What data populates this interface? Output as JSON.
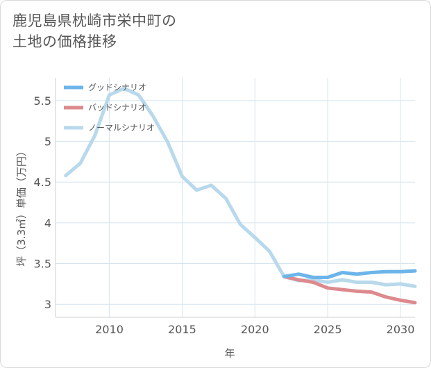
{
  "title": "鹿児島県枕崎市栄中町の\n土地の価格推移",
  "chart_data": {
    "type": "line",
    "xlabel": "年",
    "ylabel": "坪（3.3㎡）単価（万円）",
    "xlim": [
      2006.3,
      2031
    ],
    "ylim": [
      2.84,
      5.78
    ],
    "xticks": [
      2010,
      2015,
      2020,
      2025,
      2030
    ],
    "yticks": [
      3,
      3.5,
      4,
      4.5,
      5,
      5.5
    ],
    "grid": true,
    "legend_position": "top-left",
    "series": [
      {
        "name": "グッドシナリオ",
        "color": "#6cb4ea",
        "x": [
          2022,
          2023,
          2024,
          2025,
          2026,
          2027,
          2028,
          2029,
          2030,
          2031
        ],
        "values": [
          3.34,
          3.37,
          3.33,
          3.33,
          3.39,
          3.37,
          3.39,
          3.4,
          3.4,
          3.41
        ]
      },
      {
        "name": "バッドシナリオ",
        "color": "#dd8a8e",
        "x": [
          2022,
          2023,
          2024,
          2025,
          2026,
          2027,
          2028,
          2029,
          2030,
          2031
        ],
        "values": [
          3.34,
          3.3,
          3.27,
          3.2,
          3.18,
          3.16,
          3.15,
          3.09,
          3.05,
          3.02
        ]
      },
      {
        "name": "ノーマルシナリオ",
        "color": "#b8d9ec",
        "x": [
          2007,
          2008,
          2009,
          2010,
          2011,
          2012,
          2013,
          2014,
          2015,
          2016,
          2017,
          2018,
          2019,
          2020,
          2021,
          2022,
          2023,
          2024,
          2025,
          2026,
          2027,
          2028,
          2029,
          2030,
          2031
        ],
        "values": [
          4.58,
          4.73,
          5.07,
          5.57,
          5.65,
          5.57,
          5.31,
          4.99,
          4.57,
          4.4,
          4.46,
          4.3,
          3.98,
          3.82,
          3.65,
          3.34,
          3.29,
          3.3,
          3.27,
          3.3,
          3.27,
          3.27,
          3.24,
          3.25,
          3.22
        ]
      }
    ]
  }
}
